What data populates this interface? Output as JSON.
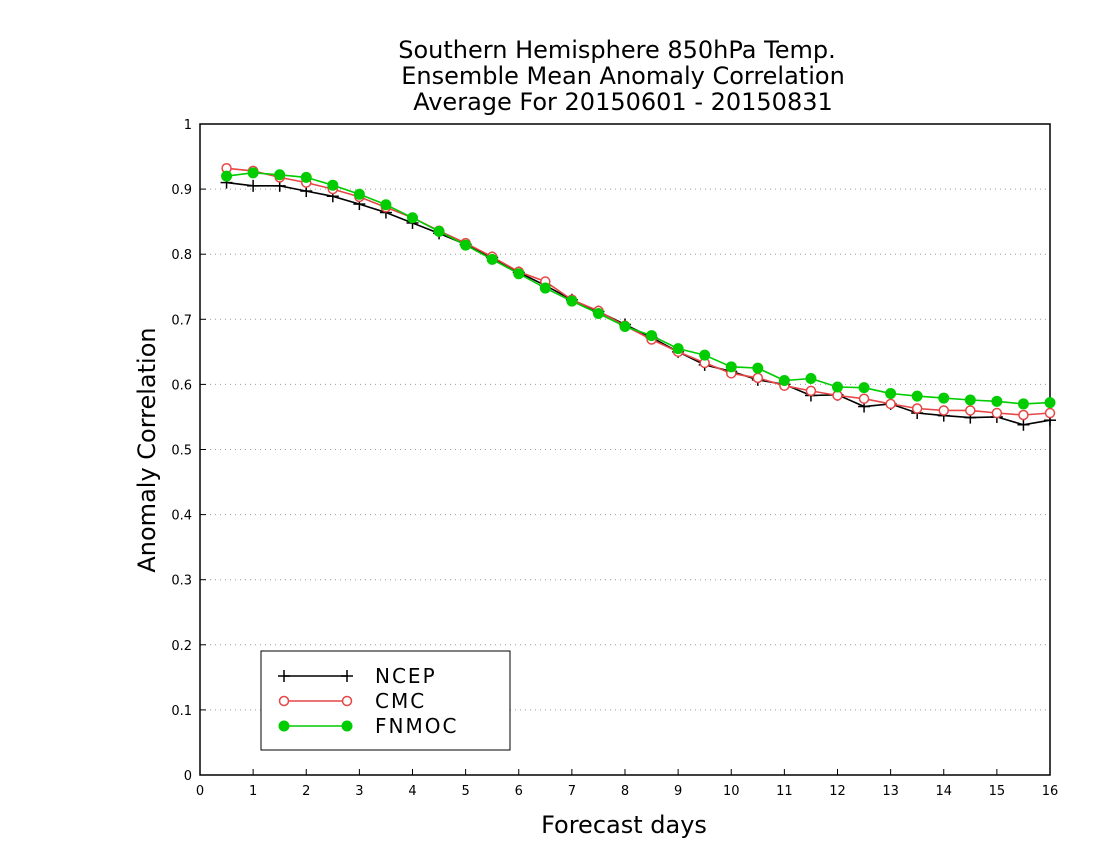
{
  "chart_data": {
    "type": "line",
    "title": [
      "Southern Hemisphere 850hPa Temp.",
      "Ensemble Mean Anomaly Correlation",
      "Average For 20150601 - 20150831"
    ],
    "xlabel": "Forecast days",
    "ylabel": "Anomaly Correlation",
    "xlim": [
      0,
      16
    ],
    "ylim": [
      0,
      1
    ],
    "xticks": [
      0,
      1,
      2,
      3,
      4,
      5,
      6,
      7,
      8,
      9,
      10,
      11,
      12,
      13,
      14,
      15,
      16
    ],
    "yticks": [
      0,
      0.1,
      0.2,
      0.3,
      0.4,
      0.5,
      0.6,
      0.7,
      0.8,
      0.9,
      1
    ],
    "ytick_labels": [
      "0",
      "0.1",
      "0.2",
      "0.3",
      "0.4",
      "0.5",
      "0.6",
      "0.7",
      "0.8",
      "0.9",
      "1"
    ],
    "grid": "horizontal dotted",
    "legend_position": "bottom-left",
    "x": [
      0.5,
      1,
      1.5,
      2,
      2.5,
      3,
      3.5,
      4,
      4.5,
      5,
      5.5,
      6,
      6.5,
      7,
      7.5,
      8,
      8.5,
      9,
      9.5,
      10,
      10.5,
      11,
      11.5,
      12,
      12.5,
      13,
      13.5,
      14,
      14.5,
      15,
      15.5,
      16
    ],
    "series": [
      {
        "name": "NCEP",
        "color": "#000000",
        "marker": "plus",
        "values": [
          0.91,
          0.905,
          0.905,
          0.897,
          0.889,
          0.877,
          0.864,
          0.848,
          0.832,
          0.815,
          0.795,
          0.772,
          0.752,
          0.73,
          0.712,
          0.692,
          0.672,
          0.65,
          0.63,
          0.62,
          0.607,
          0.6,
          0.583,
          0.584,
          0.566,
          0.57,
          0.556,
          0.552,
          0.549,
          0.55,
          0.538,
          0.545
        ]
      },
      {
        "name": "CMC",
        "color": "#e64646",
        "marker": "open-circle",
        "values": [
          0.932,
          0.928,
          0.918,
          0.91,
          0.9,
          0.888,
          0.872,
          0.856,
          0.836,
          0.817,
          0.796,
          0.773,
          0.758,
          0.73,
          0.713,
          0.69,
          0.669,
          0.65,
          0.633,
          0.617,
          0.61,
          0.598,
          0.59,
          0.583,
          0.578,
          0.57,
          0.563,
          0.56,
          0.56,
          0.556,
          0.553,
          0.556
        ]
      },
      {
        "name": "FNMOC",
        "color": "#00cc00",
        "marker": "filled-circle",
        "values": [
          0.92,
          0.925,
          0.922,
          0.918,
          0.906,
          0.892,
          0.876,
          0.856,
          0.835,
          0.814,
          0.792,
          0.77,
          0.748,
          0.728,
          0.709,
          0.689,
          0.675,
          0.655,
          0.645,
          0.627,
          0.625,
          0.606,
          0.609,
          0.596,
          0.595,
          0.586,
          0.582,
          0.579,
          0.576,
          0.574,
          0.57,
          0.572
        ]
      }
    ]
  }
}
